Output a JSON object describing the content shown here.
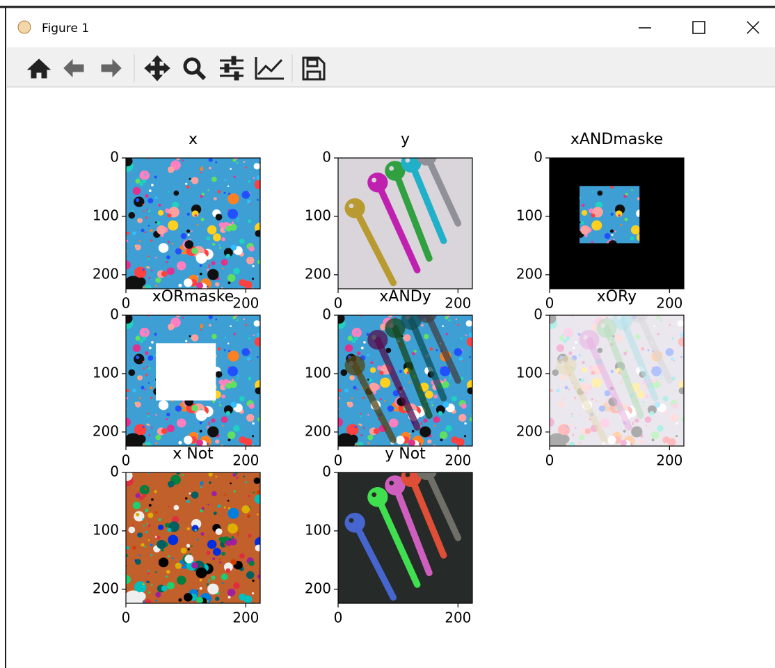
{
  "window": {
    "title": "Figure 1"
  },
  "figure": {
    "subplots": [
      {
        "title": "x",
        "xlim": [
          0,
          224
        ],
        "ylim": [
          224,
          0
        ],
        "xticks": [
          0,
          200
        ],
        "yticks": [
          0,
          100,
          200
        ]
      },
      {
        "title": "y",
        "xlim": [
          0,
          224
        ],
        "ylim": [
          224,
          0
        ],
        "xticks": [
          0,
          200
        ],
        "yticks": [
          0,
          100,
          200
        ]
      },
      {
        "title": "xANDmaske",
        "xlim": [
          0,
          224
        ],
        "ylim": [
          224,
          0
        ],
        "xticks": [
          0,
          200
        ],
        "yticks": [
          0,
          100,
          200
        ]
      },
      {
        "title": "xORmaske",
        "xlim": [
          0,
          224
        ],
        "ylim": [
          224,
          0
        ],
        "xticks": [
          0,
          200
        ],
        "yticks": [
          0,
          100,
          200
        ]
      },
      {
        "title": "xANDy",
        "xlim": [
          0,
          224
        ],
        "ylim": [
          224,
          0
        ],
        "xticks": [
          0,
          200
        ],
        "yticks": [
          0,
          100,
          200
        ]
      },
      {
        "title": "xORy",
        "xlim": [
          0,
          224
        ],
        "ylim": [
          224,
          0
        ],
        "xticks": [
          0,
          200
        ],
        "yticks": [
          0,
          100,
          200
        ]
      },
      {
        "title": "x Not",
        "xlim": [
          0,
          224
        ],
        "ylim": [
          224,
          0
        ],
        "xticks": [
          0,
          200
        ],
        "yticks": [
          0,
          100,
          200
        ]
      },
      {
        "title": "y Not",
        "xlim": [
          0,
          224
        ],
        "ylim": [
          224,
          0
        ],
        "xticks": [
          0,
          200
        ],
        "yticks": [
          0,
          100,
          200
        ]
      }
    ]
  }
}
